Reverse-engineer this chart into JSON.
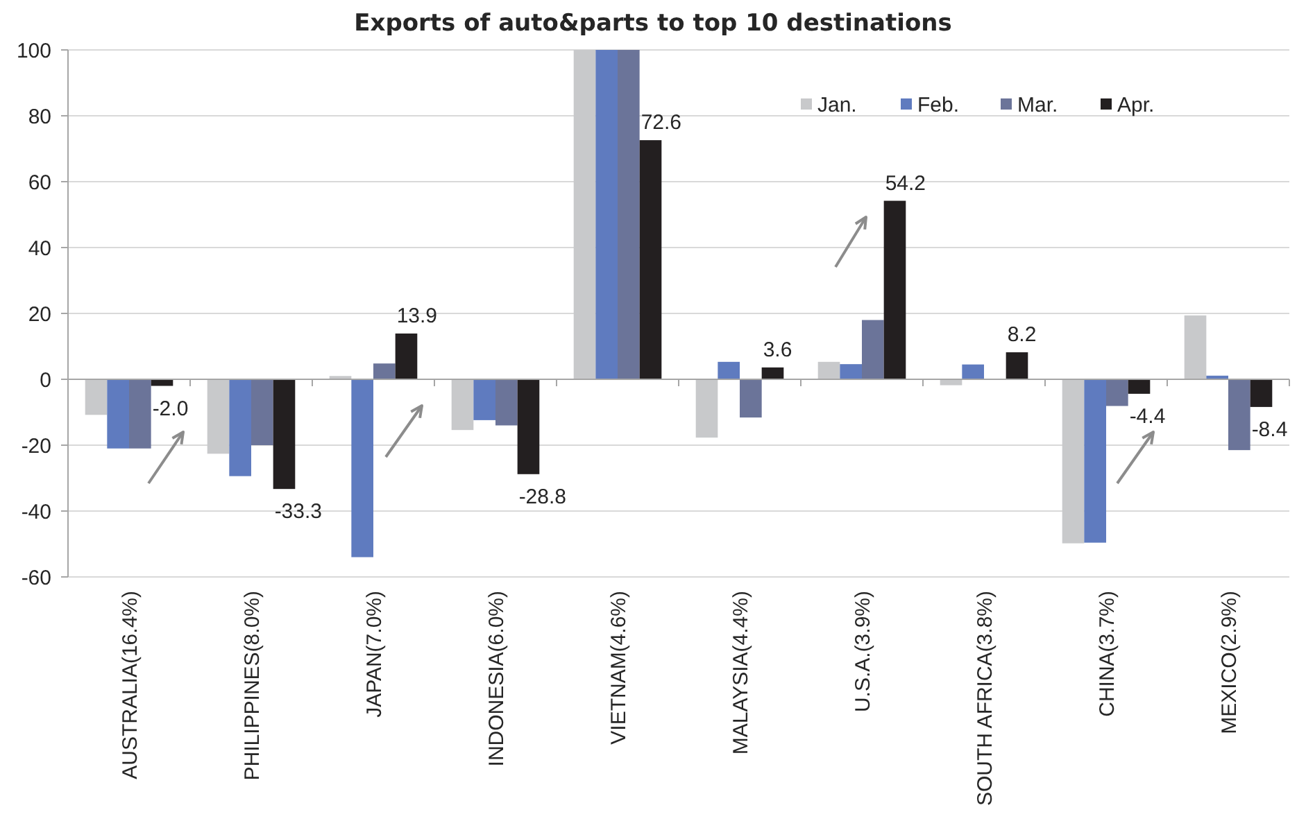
{
  "chart_data": {
    "type": "bar",
    "title": "Exports of auto&parts to top 10 destinations",
    "categories": [
      "AUSTRALIA(16.4%)",
      "PHILIPPINES(8.0%)",
      "JAPAN(7.0%)",
      "INDONESIA(6.0%)",
      "VIETNAM(4.6%)",
      "MALAYSIA(4.4%)",
      "U.S.A.(3.9%)",
      "SOUTH AFRICA(3.8%)",
      "CHINA(3.7%)",
      "MEXICO(2.9%)"
    ],
    "series": [
      {
        "name": "Jan.",
        "color": "#c8c9cb",
        "values": [
          -10.8,
          -22.6,
          1.0,
          -15.4,
          100,
          -17.7,
          5.3,
          -1.8,
          -49.8,
          19.4
        ]
      },
      {
        "name": "Feb.",
        "color": "#5f7bbf",
        "values": [
          -21,
          -29.4,
          -54,
          -12.4,
          100,
          5.3,
          4.6,
          4.5,
          -49.6,
          1.1
        ]
      },
      {
        "name": "Mar.",
        "color": "#6b7499",
        "values": [
          -21,
          -20,
          4.8,
          -14,
          100,
          -11.6,
          18,
          null,
          -8.1,
          -21.5
        ]
      },
      {
        "name": "Apr.",
        "color": "#231f20",
        "values": [
          -2.0,
          -33.3,
          13.9,
          -28.8,
          72.6,
          3.6,
          54.2,
          8.2,
          -4.4,
          -8.4
        ],
        "value_labels": [
          "-2.0",
          "-33.3",
          "13.9",
          "-28.8",
          "72.6",
          "3.6",
          "54.2",
          "8.2",
          "-4.4",
          "-8.4"
        ]
      }
    ],
    "ylim": [
      -60,
      100
    ],
    "yticks": [
      -60,
      -40,
      -20,
      0,
      20,
      40,
      60,
      80,
      100
    ],
    "grid": "y",
    "legend": "top right"
  }
}
